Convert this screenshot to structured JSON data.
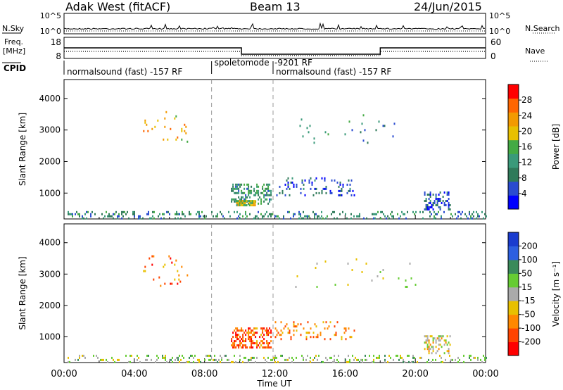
{
  "header": {
    "title": "Adak West (fitACF)",
    "beam": "Beam 13",
    "date": "24/Jun/2015"
  },
  "side_labels": {
    "nsky": "N.Sky",
    "freq_line1": "Freq.",
    "freq_line2": "[MHz]",
    "cpid": "CPID",
    "nsearch": "N.Search",
    "nave": "Nave"
  },
  "colors": {
    "power": [
      "#0000ff",
      "#2a4bd0",
      "#2f7a5a",
      "#3a9a7a",
      "#44aa44",
      "#e8c000",
      "#f39a00",
      "#ff6600",
      "#ff0000"
    ],
    "velocity": [
      "#1a3ccf",
      "#2d5fe0",
      "#3a8a5a",
      "#66cc33",
      "#aaaaaa",
      "#e8c000",
      "#ff8800",
      "#ff4400",
      "#ff0000"
    ]
  },
  "chart_data": [
    {
      "type": "line",
      "name": "nsky-nsearch-panel",
      "ylabel": "N.Sky",
      "ylabel_right": "N.Search",
      "yticks_left": [
        "10^5",
        "10^0"
      ],
      "yticks_right": [
        "10^5",
        "10^0"
      ],
      "xlim_hours": [
        0,
        24
      ]
    },
    {
      "type": "line",
      "name": "freq-nave-panel",
      "ylabel": "Freq. [MHz]",
      "ylabel_right": "Nave",
      "yticks_left": [
        "18",
        "8"
      ],
      "yticks_right": [
        "60",
        "0"
      ],
      "freq_segments": [
        {
          "start_hour": 0.0,
          "end_hour": 10.1,
          "value": 13
        },
        {
          "start_hour": 10.1,
          "end_hour": 18.0,
          "value": 10
        },
        {
          "start_hour": 18.0,
          "end_hour": 24.0,
          "value": 13
        }
      ],
      "nave_segments": [
        {
          "start_hour": 0.0,
          "end_hour": 10.1,
          "value": 20
        },
        {
          "start_hour": 10.1,
          "end_hour": 18.0,
          "value": 8
        },
        {
          "start_hour": 18.0,
          "end_hour": 24.0,
          "value": 20
        }
      ]
    },
    {
      "type": "table",
      "name": "cpid-bar",
      "label": "CPID",
      "segments": [
        {
          "start_hour": 0.0,
          "end_hour": 8.4,
          "text": "normalsound (fast) -157 RF"
        },
        {
          "start_hour": 8.4,
          "end_hour": 11.9,
          "text": "spoletomode"
        },
        {
          "start_hour": 11.9,
          "end_hour": 24.0,
          "text": "-9201 RF"
        },
        {
          "start_hour": 11.9,
          "end_hour": 24.0,
          "text": "normalsound (fast) -157 RF"
        }
      ],
      "mode_change_hours": [
        8.4,
        11.9
      ]
    },
    {
      "type": "heatmap",
      "name": "power-panel",
      "ylabel": "Slant Range [km]",
      "yticks": [
        1000,
        2000,
        3000,
        4000
      ],
      "ylim": [
        180,
        4600
      ],
      "xlim_hours": [
        0,
        24
      ],
      "colorbar_label": "Power [dB]",
      "colorbar_ticks": [
        "4",
        "8",
        "12",
        "16",
        "20",
        "24",
        "28"
      ],
      "clusters": [
        {
          "start_hour": 0.2,
          "end_hour": 24.0,
          "range_min": 200,
          "range_max": 430,
          "level": 0.3,
          "density": 0.22
        },
        {
          "start_hour": 9.5,
          "end_hour": 11.8,
          "range_min": 650,
          "range_max": 1300,
          "level": 0.35,
          "density": 0.45
        },
        {
          "start_hour": 9.8,
          "end_hour": 10.9,
          "range_min": 620,
          "range_max": 780,
          "level": 0.6,
          "density": 0.8
        },
        {
          "start_hour": 12.0,
          "end_hour": 16.5,
          "range_min": 900,
          "range_max": 1500,
          "level": 0.15,
          "density": 0.14
        },
        {
          "start_hour": 20.5,
          "end_hour": 22.0,
          "range_min": 500,
          "range_max": 1050,
          "level": 0.15,
          "density": 0.4
        },
        {
          "start_hour": 4.5,
          "end_hour": 7.0,
          "range_min": 2600,
          "range_max": 3600,
          "level": 0.7,
          "density": 0.05
        },
        {
          "start_hour": 13.0,
          "end_hour": 20.0,
          "range_min": 2600,
          "range_max": 3500,
          "level": 0.3,
          "density": 0.02
        }
      ]
    },
    {
      "type": "heatmap",
      "name": "velocity-panel",
      "ylabel": "Slant Range [km]",
      "yticks": [
        1000,
        2000,
        3000,
        4000
      ],
      "ylim": [
        180,
        4600
      ],
      "xlim_hours": [
        0,
        24
      ],
      "colorbar_label": "Velocity [m s⁻¹]",
      "colorbar_ticks": [
        "-200",
        "-100",
        "-50",
        "-15",
        "15",
        "50",
        "100",
        "200"
      ],
      "xticks": [
        "00:00",
        "04:00",
        "08:00",
        "12:00",
        "16:00",
        "20:00",
        "00:00"
      ],
      "xlabel": "Time UT",
      "clusters": [
        {
          "start_hour": 0.2,
          "end_hour": 24.0,
          "range_min": 200,
          "range_max": 430,
          "level": 0.45,
          "density": 0.22
        },
        {
          "start_hour": 9.5,
          "end_hour": 11.8,
          "range_min": 650,
          "range_max": 1300,
          "level": 0.85,
          "density": 0.45
        },
        {
          "start_hour": 12.0,
          "end_hour": 16.5,
          "range_min": 900,
          "range_max": 1500,
          "level": 0.75,
          "density": 0.14
        },
        {
          "start_hour": 20.5,
          "end_hour": 22.0,
          "range_min": 500,
          "range_max": 1050,
          "level": 0.55,
          "density": 0.4
        },
        {
          "start_hour": 4.5,
          "end_hour": 7.0,
          "range_min": 2600,
          "range_max": 3600,
          "level": 0.8,
          "density": 0.05
        },
        {
          "start_hour": 13.0,
          "end_hour": 20.0,
          "range_min": 2600,
          "range_max": 3500,
          "level": 0.5,
          "density": 0.02
        }
      ]
    }
  ]
}
